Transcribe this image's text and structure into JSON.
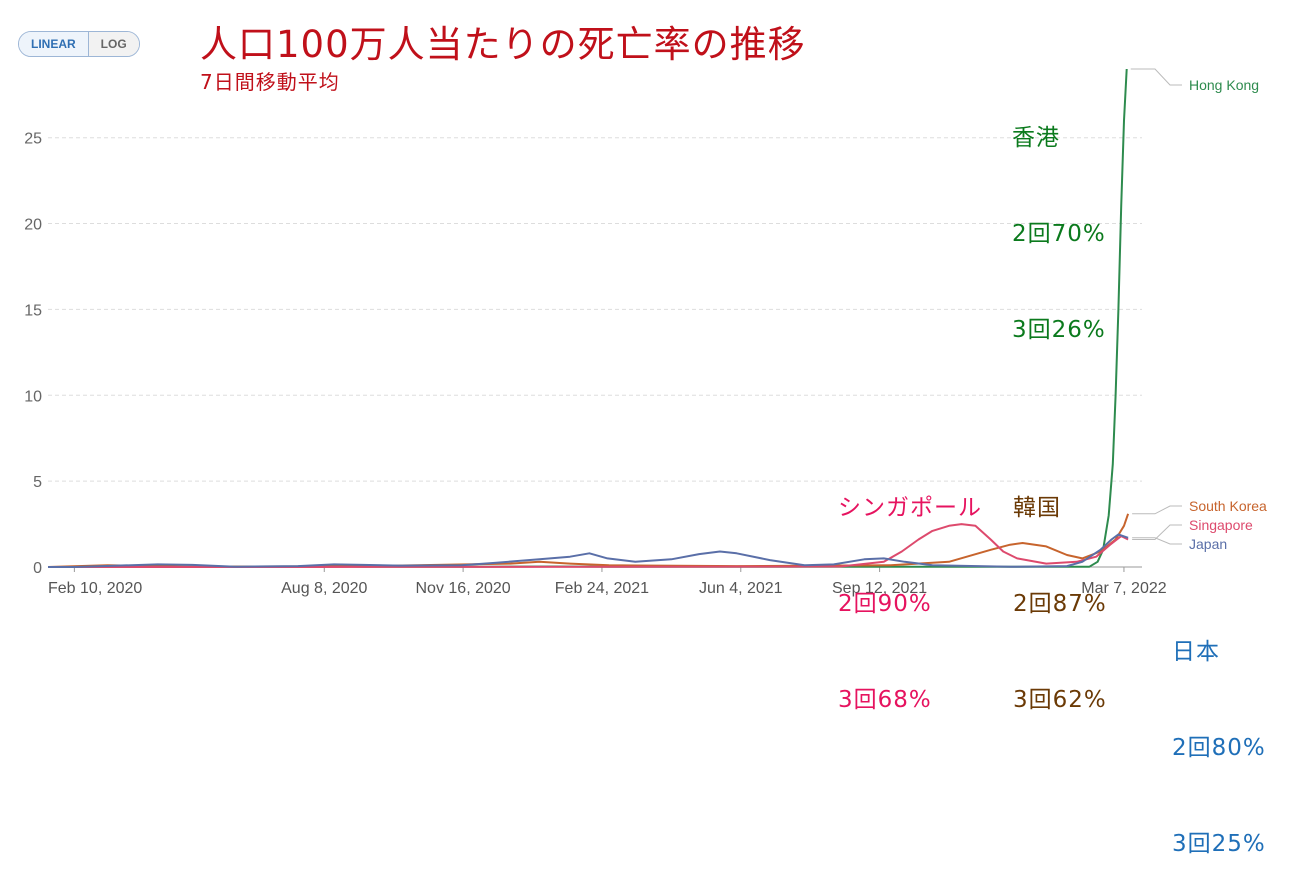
{
  "scale_toggle": {
    "linear_label": "LINEAR",
    "log_label": "LOG",
    "selected": "LINEAR"
  },
  "title": "人口100万人当たりの死亡率の推移",
  "subtitle": "7日間移動平均",
  "annotations": [
    {
      "country": "香港",
      "dose2": "2回70%",
      "dose3": "3回26%",
      "color": "#0b7a1d"
    },
    {
      "country": "シンガポール",
      "dose2": "2回90%",
      "dose3": "3回68%",
      "color": "#e6135f"
    },
    {
      "country": "韓国",
      "dose2": "2回87%",
      "dose3": "3回62%",
      "color": "#6b3a06"
    },
    {
      "country": "日本",
      "dose2": "2回80%",
      "dose3": "3回25%",
      "color": "#1f6fb8"
    }
  ],
  "chart_data": {
    "type": "line",
    "xlabel": "",
    "ylabel": "",
    "x_unit": "date",
    "x_range": [
      "2020-01-22",
      "2022-03-20"
    ],
    "ylim": [
      0,
      29
    ],
    "y_ticks": [
      0,
      5,
      10,
      15,
      20,
      25
    ],
    "x_ticks": [
      "Feb 10, 2020",
      "Aug 8, 2020",
      "Nov 16, 2020",
      "Feb 24, 2021",
      "Jun 4, 2021",
      "Sep 12, 2021",
      "Mar 7, 2022"
    ],
    "x_tick_dates": [
      "2020-02-10",
      "2020-08-08",
      "2020-11-16",
      "2021-02-24",
      "2021-06-04",
      "2021-09-12",
      "2022-03-07"
    ],
    "grid": "horizontal",
    "legend": "right end labels",
    "series": [
      {
        "name": "Hong Kong",
        "color": "#2e8b4e",
        "points": [
          [
            "2020-01-22",
            0
          ],
          [
            "2020-07-20",
            0.03
          ],
          [
            "2020-08-10",
            0.06
          ],
          [
            "2020-09-05",
            0.02
          ],
          [
            "2020-12-01",
            0.02
          ],
          [
            "2021-01-20",
            0.03
          ],
          [
            "2021-03-01",
            0.01
          ],
          [
            "2022-02-10",
            0.01
          ],
          [
            "2022-02-16",
            0.3
          ],
          [
            "2022-02-20",
            1
          ],
          [
            "2022-02-24",
            3
          ],
          [
            "2022-02-27",
            6
          ],
          [
            "2022-03-01",
            10
          ],
          [
            "2022-03-03",
            15
          ],
          [
            "2022-03-05",
            21
          ],
          [
            "2022-03-07",
            26
          ],
          [
            "2022-03-09",
            29
          ]
        ]
      },
      {
        "name": "South Korea",
        "color": "#c7642d",
        "points": [
          [
            "2020-01-22",
            0
          ],
          [
            "2020-03-05",
            0.1
          ],
          [
            "2020-03-25",
            0.07
          ],
          [
            "2020-05-01",
            0.02
          ],
          [
            "2020-09-01",
            0.04
          ],
          [
            "2020-12-20",
            0.2
          ],
          [
            "2021-01-10",
            0.3
          ],
          [
            "2021-02-01",
            0.2
          ],
          [
            "2021-03-01",
            0.1
          ],
          [
            "2021-06-01",
            0.05
          ],
          [
            "2021-09-20",
            0.1
          ],
          [
            "2021-11-01",
            0.3
          ],
          [
            "2021-12-01",
            1
          ],
          [
            "2021-12-15",
            1.3
          ],
          [
            "2021-12-24",
            1.4
          ],
          [
            "2022-01-10",
            1.2
          ],
          [
            "2022-01-25",
            0.7
          ],
          [
            "2022-02-05",
            0.5
          ],
          [
            "2022-02-18",
            0.9
          ],
          [
            "2022-03-01",
            1.6
          ],
          [
            "2022-03-07",
            2.4
          ],
          [
            "2022-03-10",
            3.1
          ]
        ]
      },
      {
        "name": "Singapore",
        "color": "#dd4a6d",
        "points": [
          [
            "2020-01-22",
            0
          ],
          [
            "2020-08-01",
            0
          ],
          [
            "2021-08-15",
            0.03
          ],
          [
            "2021-09-15",
            0.3
          ],
          [
            "2021-09-28",
            0.9
          ],
          [
            "2021-10-10",
            1.6
          ],
          [
            "2021-10-20",
            2.1
          ],
          [
            "2021-11-01",
            2.4
          ],
          [
            "2021-11-10",
            2.5
          ],
          [
            "2021-11-20",
            2.4
          ],
          [
            "2021-12-01",
            1.6
          ],
          [
            "2021-12-10",
            0.9
          ],
          [
            "2021-12-20",
            0.5
          ],
          [
            "2022-01-10",
            0.2
          ],
          [
            "2022-02-01",
            0.3
          ],
          [
            "2022-02-15",
            0.6
          ],
          [
            "2022-02-25",
            1.3
          ],
          [
            "2022-03-05",
            1.8
          ],
          [
            "2022-03-10",
            1.6
          ]
        ]
      },
      {
        "name": "Japan",
        "color": "#5a6fa8",
        "points": [
          [
            "2020-01-22",
            0
          ],
          [
            "2020-02-10",
            0
          ],
          [
            "2020-03-01",
            0.05
          ],
          [
            "2020-04-10",
            0.15
          ],
          [
            "2020-05-05",
            0.12
          ],
          [
            "2020-06-05",
            0.02
          ],
          [
            "2020-07-20",
            0.05
          ],
          [
            "2020-08-15",
            0.15
          ],
          [
            "2020-09-05",
            0.12
          ],
          [
            "2020-10-01",
            0.08
          ],
          [
            "2020-11-15",
            0.1
          ],
          [
            "2020-12-10",
            0.25
          ],
          [
            "2021-01-10",
            0.45
          ],
          [
            "2021-02-01",
            0.6
          ],
          [
            "2021-02-15",
            0.8
          ],
          [
            "2021-02-28",
            0.5
          ],
          [
            "2021-03-20",
            0.3
          ],
          [
            "2021-04-15",
            0.45
          ],
          [
            "2021-05-05",
            0.75
          ],
          [
            "2021-05-20",
            0.9
          ],
          [
            "2021-06-01",
            0.8
          ],
          [
            "2021-06-25",
            0.4
          ],
          [
            "2021-07-20",
            0.1
          ],
          [
            "2021-08-10",
            0.15
          ],
          [
            "2021-09-01",
            0.45
          ],
          [
            "2021-09-15",
            0.5
          ],
          [
            "2021-09-30",
            0.3
          ],
          [
            "2021-10-20",
            0.1
          ],
          [
            "2021-12-15",
            0.01
          ],
          [
            "2022-01-25",
            0.05
          ],
          [
            "2022-02-05",
            0.3
          ],
          [
            "2022-02-18",
            1
          ],
          [
            "2022-02-26",
            1.6
          ],
          [
            "2022-03-03",
            1.9
          ],
          [
            "2022-03-10",
            1.7
          ]
        ]
      }
    ]
  }
}
